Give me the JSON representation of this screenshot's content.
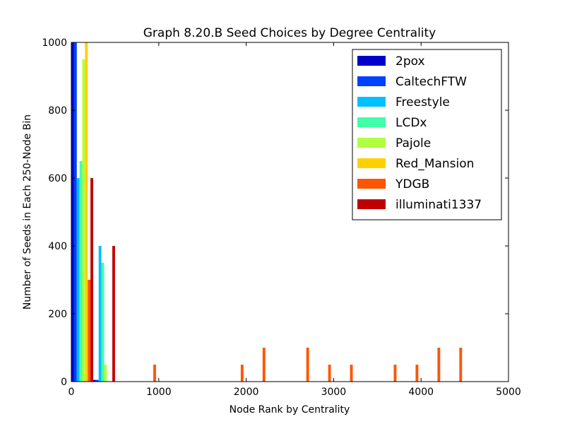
{
  "chart_data": {
    "type": "bar",
    "title": "Graph 8.20.B Seed Choices by Degree Centrality",
    "xlabel": "Node Rank by Centrality",
    "ylabel": "Number of Seeds in Each 250-Node Bin",
    "xlim": [
      0,
      5000
    ],
    "ylim": [
      0,
      1000
    ],
    "xticks": [
      0,
      1000,
      2000,
      3000,
      4000,
      5000
    ],
    "yticks": [
      0,
      200,
      400,
      600,
      800,
      1000
    ],
    "bin_width": 250,
    "legend_position": "top-right",
    "series": [
      {
        "name": "2pox",
        "color": "#0000cc",
        "values": [
          [
            0,
            1000
          ],
          [
            250,
            5
          ]
        ]
      },
      {
        "name": "CaltechFTW",
        "color": "#0040ff",
        "values": [
          [
            0,
            1000
          ],
          [
            250,
            5
          ]
        ]
      },
      {
        "name": "Freestyle",
        "color": "#00c0ff",
        "values": [
          [
            0,
            600
          ],
          [
            250,
            400
          ]
        ]
      },
      {
        "name": "LCDx",
        "color": "#40ffa8",
        "values": [
          [
            0,
            650
          ],
          [
            250,
            350
          ]
        ]
      },
      {
        "name": "Pajole",
        "color": "#b0ff40",
        "values": [
          [
            0,
            950
          ],
          [
            250,
            50
          ]
        ]
      },
      {
        "name": "Red_Mansion",
        "color": "#ffd000",
        "values": [
          [
            0,
            1000
          ]
        ]
      },
      {
        "name": "YDGB",
        "color": "#ff5500",
        "values": [
          [
            0,
            300
          ],
          [
            750,
            50
          ],
          [
            1750,
            50
          ],
          [
            2000,
            100
          ],
          [
            2500,
            100
          ],
          [
            2750,
            50
          ],
          [
            3000,
            50
          ],
          [
            3500,
            50
          ],
          [
            3750,
            50
          ],
          [
            4000,
            100
          ],
          [
            4250,
            100
          ]
        ]
      },
      {
        "name": "illuminati1337",
        "color": "#c00000",
        "values": [
          [
            0,
            600
          ],
          [
            250,
            400
          ]
        ]
      }
    ]
  }
}
